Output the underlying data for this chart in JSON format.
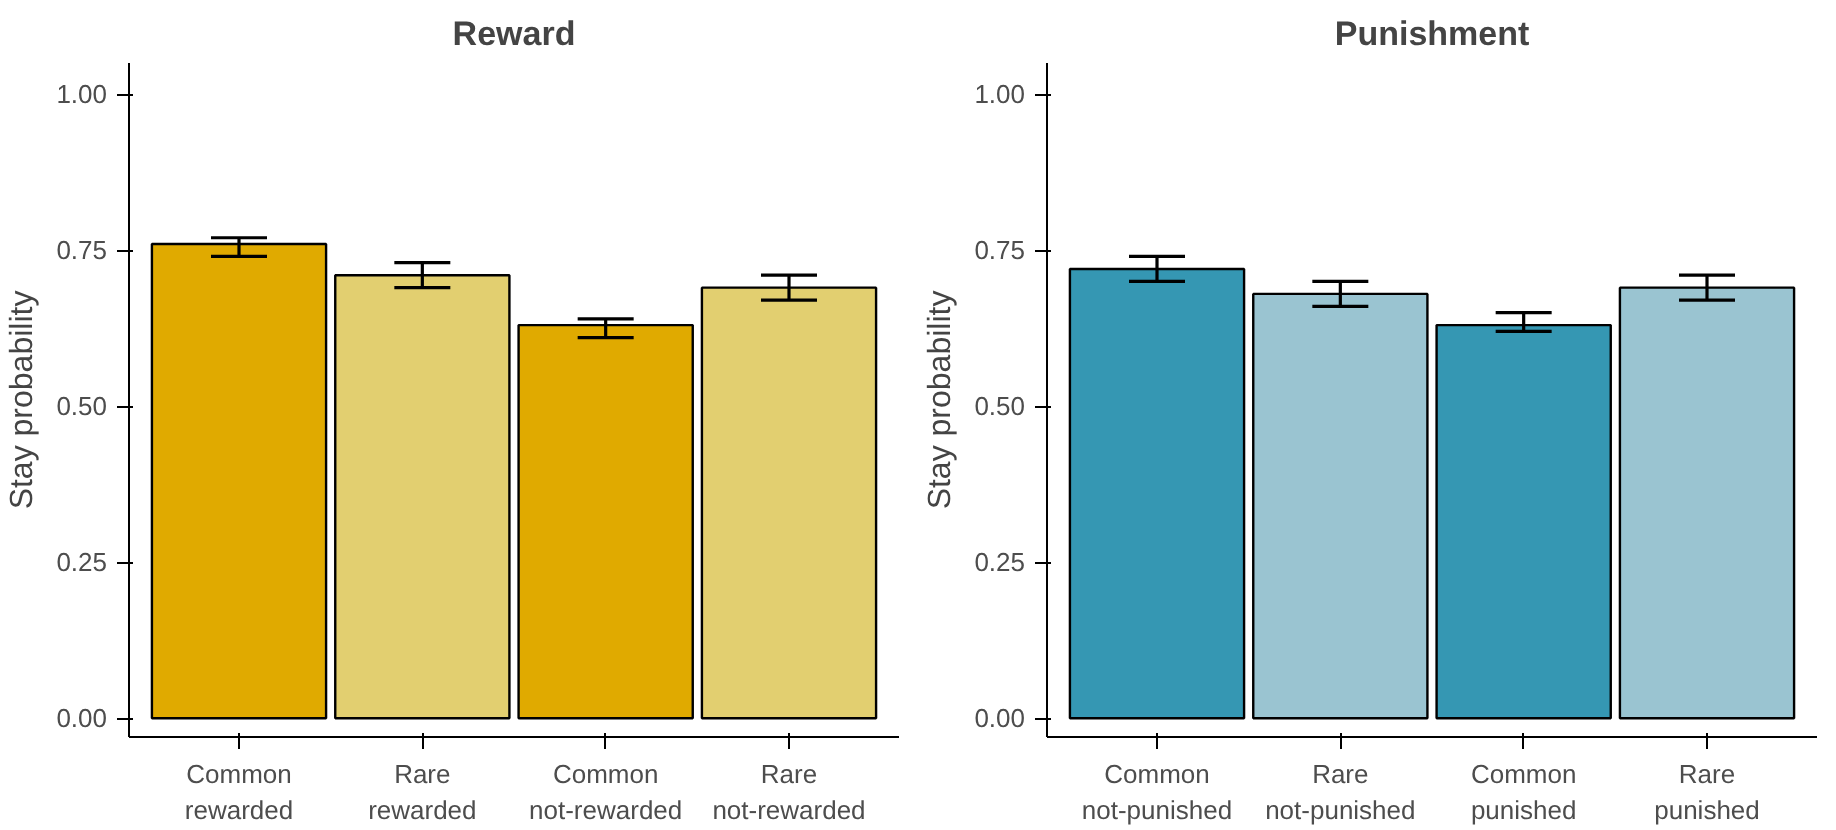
{
  "chart_data": [
    {
      "type": "bar",
      "title": "Reward",
      "ylabel": "Stay probability",
      "categories": [
        "Common\nrewarded",
        "Rare\nrewarded",
        "Common\nnot-rewarded",
        "Rare\nnot-rewarded"
      ],
      "values": [
        0.76,
        0.71,
        0.63,
        0.69
      ],
      "colors": [
        "#e0aa00",
        "#e2cf70",
        "#e0aa00",
        "#e2cf70"
      ],
      "errors": [
        [
          0.74,
          0.77
        ],
        [
          0.69,
          0.73
        ],
        [
          0.61,
          0.64
        ],
        [
          0.67,
          0.71
        ]
      ],
      "ylim": [
        -0.03,
        1.05
      ],
      "yticks": [
        {
          "value": 0,
          "label": "0.00"
        },
        {
          "value": 0.25,
          "label": "0.25"
        },
        {
          "value": 0.5,
          "label": "0.50"
        },
        {
          "value": 0.75,
          "label": "0.75"
        },
        {
          "value": 1,
          "label": "1.00"
        }
      ],
      "grid": false
    },
    {
      "type": "bar",
      "title": "Punishment",
      "ylabel": "Stay probability",
      "categories": [
        "Common\nnot-punished",
        "Rare\nnot-punished",
        "Common\npunished",
        "Rare\npunished"
      ],
      "values": [
        0.72,
        0.68,
        0.63,
        0.69
      ],
      "colors": [
        "#3597b3",
        "#9ac4d1",
        "#3597b3",
        "#9ac4d1"
      ],
      "errors": [
        [
          0.7,
          0.74
        ],
        [
          0.66,
          0.7
        ],
        [
          0.62,
          0.65
        ],
        [
          0.67,
          0.71
        ]
      ],
      "ylim": [
        -0.03,
        1.05
      ],
      "yticks": [
        {
          "value": 0,
          "label": "0.00"
        },
        {
          "value": 0.25,
          "label": "0.25"
        },
        {
          "value": 0.5,
          "label": "0.50"
        },
        {
          "value": 0.75,
          "label": "0.75"
        },
        {
          "value": 1,
          "label": "1.00"
        }
      ],
      "grid": false
    }
  ]
}
